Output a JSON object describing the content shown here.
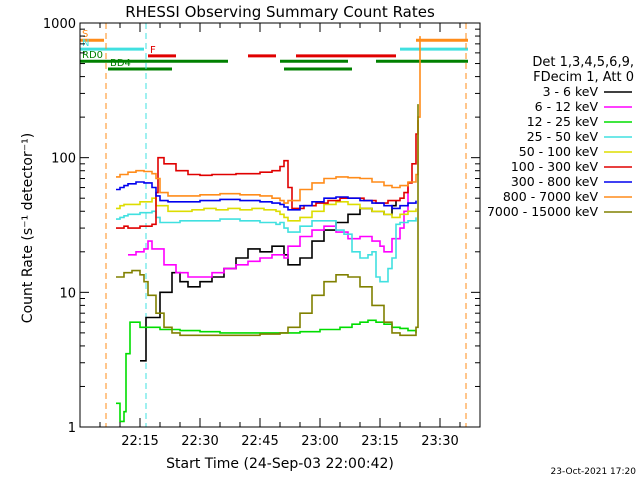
{
  "chart_data": {
    "type": "line",
    "title": "RHESSI Observing Summary Count Rates",
    "xlabel": "Start Time (24-Sep-03 22:00:42)",
    "ylabel": "Count Rate (s⁻¹ detector⁻¹)",
    "x_ticks": [
      "22:15",
      "22:30",
      "22:45",
      "23:00",
      "23:15",
      "23:30"
    ],
    "x_tick_minutes": [
      15,
      30,
      45,
      60,
      75,
      90
    ],
    "xlim_minutes": [
      0,
      100
    ],
    "y_scale": "log",
    "ylim": [
      1,
      1000
    ],
    "y_ticks": [
      "1",
      "10",
      "100",
      "1000"
    ],
    "y_tick_values": [
      1,
      10,
      100,
      1000
    ],
    "grid": false,
    "legend_position": "right",
    "legend_header": [
      "Det 1,3,4,5,6,9,",
      "FDecim 1, Att 0"
    ],
    "footer_date": "23-Oct-2021 17:20",
    "flags": [
      {
        "label": "S",
        "color": "#ff8c1a",
        "y": 745,
        "segments": [
          [
            0,
            6
          ],
          [
            84,
            97
          ]
        ]
      },
      {
        "label": "N",
        "color": "#40e0e0",
        "y": 640,
        "segments": [
          [
            0,
            16
          ],
          [
            80,
            97
          ]
        ]
      },
      {
        "label": "F",
        "color": "#e00000",
        "y": 570,
        "segments": [
          [
            17,
            24
          ],
          [
            42,
            49
          ],
          [
            54,
            79
          ]
        ]
      },
      {
        "label": "RD0",
        "color": "#008000",
        "y": 520,
        "segments": [
          [
            0,
            37
          ],
          [
            50,
            67
          ],
          [
            74,
            97
          ]
        ]
      },
      {
        "label": "BD4",
        "color": "#008000",
        "y": 455,
        "segments": [
          [
            7,
            23
          ],
          [
            51,
            68
          ]
        ]
      }
    ],
    "vertical_lines": [
      {
        "x": 6.5,
        "color": "#ff8c1a"
      },
      {
        "x": 16.5,
        "color": "#40e0e0"
      },
      {
        "x": 96.5,
        "color": "#ff8c1a"
      }
    ],
    "series": [
      {
        "name": "3 - 6 keV",
        "color": "#000000",
        "x": [
          15,
          16.5,
          16.5,
          20,
          23,
          25,
          27,
          30,
          33,
          36,
          39,
          42,
          45,
          48,
          51,
          52,
          55,
          58,
          61,
          64,
          67,
          70,
          73,
          76,
          78,
          79
        ],
        "y": [
          3.1,
          3.3,
          6.5,
          10,
          14,
          12,
          11,
          12,
          13,
          15,
          18,
          21,
          20,
          22,
          19,
          16,
          18,
          24,
          29,
          33,
          38,
          42,
          40,
          38,
          44,
          48
        ]
      },
      {
        "name": "6 - 12 keV",
        "color": "#ff00ff",
        "x": [
          12,
          14,
          16,
          17,
          18,
          21,
          24,
          27,
          30,
          33,
          36,
          39,
          42,
          45,
          48,
          51,
          52,
          55,
          58,
          61,
          64,
          67,
          70,
          73,
          75,
          76,
          78,
          80,
          81,
          82
        ],
        "y": [
          19,
          20,
          21,
          24,
          21,
          16,
          14,
          13,
          13,
          14,
          15,
          16,
          17,
          18,
          19,
          18,
          22,
          26,
          29,
          31,
          28,
          25,
          26,
          24,
          22,
          20,
          25,
          30,
          40,
          60
        ]
      },
      {
        "name": "12 - 25 keV",
        "color": "#00dd00",
        "x": [
          9,
          10,
          11,
          11.5,
          12.5,
          15,
          20,
          25,
          30,
          35,
          40,
          45,
          50,
          55,
          60,
          65,
          68,
          70,
          72,
          74,
          76,
          78,
          80,
          82,
          84
        ],
        "y": [
          1.5,
          1.1,
          1.3,
          3.5,
          6,
          5.5,
          5.3,
          5.2,
          5.1,
          5.0,
          5.0,
          5.0,
          5.0,
          5.1,
          5.3,
          5.5,
          5.8,
          6.0,
          6.2,
          6.0,
          5.8,
          5.5,
          5.4,
          5.2,
          5.0
        ]
      },
      {
        "name": "25 - 50 keV",
        "color": "#40e0e0",
        "x": [
          9,
          10,
          11,
          12,
          15,
          18,
          19,
          20,
          25,
          30,
          35,
          40,
          45,
          49,
          50,
          51,
          52,
          55,
          58,
          61,
          64,
          66,
          68,
          70,
          72,
          73,
          74,
          75,
          77,
          78,
          79,
          80,
          82,
          84
        ],
        "y": [
          35,
          36,
          37,
          38,
          39,
          40,
          36,
          33,
          34,
          34,
          35,
          34,
          33,
          32,
          33,
          30,
          28,
          31,
          34,
          34,
          29,
          27,
          20,
          18,
          19,
          20,
          13,
          12,
          15,
          18,
          32,
          33,
          34,
          36
        ]
      },
      {
        "name": "50 - 100 keV",
        "color": "#dddd00",
        "x": [
          9,
          10,
          11,
          12,
          15,
          18,
          19,
          22,
          25,
          28,
          31,
          34,
          37,
          40,
          43,
          46,
          49,
          50,
          51,
          52,
          55,
          58,
          61,
          64,
          67,
          70,
          73,
          76,
          78,
          80,
          82,
          84
        ],
        "y": [
          42,
          44,
          45,
          45,
          47,
          50,
          44,
          40,
          40,
          41,
          42,
          41,
          42,
          41,
          42,
          41,
          40,
          38,
          36,
          34,
          36,
          40,
          45,
          47,
          45,
          42,
          40,
          38,
          36,
          38,
          40,
          42
        ]
      },
      {
        "name": "100 - 300 keV",
        "color": "#e00000",
        "x": [
          9,
          10,
          11,
          12,
          15,
          18,
          19,
          19.5,
          21,
          24,
          27,
          30,
          33,
          36,
          39,
          42,
          45,
          48,
          50,
          51,
          52,
          53,
          56,
          59,
          62,
          65,
          68,
          71,
          74,
          77,
          80,
          81,
          82,
          83,
          84,
          84.5
        ],
        "y": [
          30,
          30,
          31,
          30,
          31,
          32,
          55,
          100,
          90,
          80,
          75,
          74,
          75,
          75,
          76,
          76,
          78,
          80,
          86,
          95,
          60,
          42,
          44,
          46,
          48,
          50,
          50,
          48,
          46,
          48,
          50,
          55,
          65,
          90,
          150,
          190
        ]
      },
      {
        "name": "300 - 800 keV",
        "color": "#0000ee",
        "x": [
          9,
          10,
          11,
          12,
          14,
          16,
          18,
          19,
          20,
          22,
          25,
          30,
          35,
          40,
          45,
          48,
          50,
          51,
          52,
          55,
          58,
          61,
          64,
          67,
          70,
          73,
          76,
          78,
          80,
          82,
          84
        ],
        "y": [
          58,
          60,
          62,
          64,
          66,
          65,
          60,
          52,
          48,
          47,
          47,
          48,
          49,
          48,
          47,
          46,
          45,
          43,
          41,
          44,
          47,
          50,
          51,
          50,
          48,
          46,
          44,
          42,
          44,
          46,
          48
        ]
      },
      {
        "name": "800 - 7000 keV",
        "color": "#ff8c1a",
        "x": [
          9,
          10,
          12,
          14,
          16,
          18,
          19,
          20,
          22,
          25,
          30,
          35,
          40,
          45,
          48,
          50,
          51,
          52,
          55,
          58,
          61,
          64,
          67,
          70,
          73,
          76,
          78,
          80,
          82,
          84,
          84.5,
          85
        ],
        "y": [
          72,
          75,
          78,
          80,
          79,
          76,
          70,
          55,
          52,
          52,
          53,
          54,
          53,
          52,
          50,
          48,
          46,
          48,
          58,
          65,
          70,
          72,
          71,
          70,
          66,
          62,
          60,
          62,
          66,
          75,
          200,
          800
        ]
      },
      {
        "name": "7000 - 15000 keV",
        "color": "#808000",
        "x": [
          9,
          11,
          13,
          15,
          16,
          17,
          19,
          21,
          23,
          25,
          30,
          35,
          40,
          45,
          50,
          52,
          55,
          58,
          61,
          64,
          67,
          70,
          73,
          76,
          78,
          80,
          82,
          84,
          84.5
        ],
        "y": [
          13,
          14,
          14.5,
          13.5,
          12,
          9.5,
          7,
          5.5,
          5,
          4.8,
          4.8,
          4.8,
          4.8,
          4.9,
          5.0,
          5.5,
          7,
          9.5,
          12,
          13.5,
          13,
          11,
          8,
          6,
          5,
          4.8,
          4.8,
          5.5,
          250
        ]
      }
    ]
  }
}
